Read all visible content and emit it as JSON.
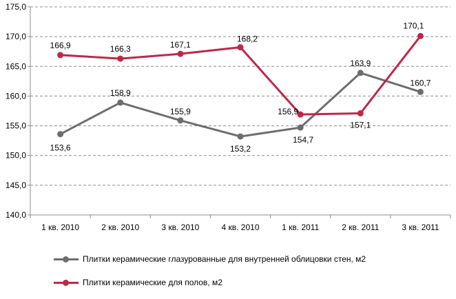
{
  "chart_data": {
    "type": "line",
    "categories": [
      "1 кв. 2010",
      "2 кв. 2010",
      "3 кв. 2010",
      "4 кв. 2010",
      "1 кв. 2011",
      "2 кв. 2011",
      "3 кв. 2011"
    ],
    "series": [
      {
        "name": "Плитки керамические глазурованные для внутренней облицовки стен, м2",
        "color": "#6d6d6d",
        "values": [
          153.6,
          158.9,
          155.9,
          153.2,
          154.7,
          163.9,
          160.7
        ],
        "labels": [
          "153,6",
          "158,9",
          "155,9",
          "153,2",
          "154,7",
          "163,9",
          "160,7"
        ]
      },
      {
        "name": "Плитки керамические для полов, м2",
        "color": "#be2847",
        "values": [
          166.9,
          166.3,
          167.1,
          168.2,
          156.9,
          157.1,
          170.1
        ],
        "labels": [
          "166,9",
          "166,3",
          "167,1",
          "168,2",
          "156,9",
          "157,1",
          "170,1"
        ]
      }
    ],
    "ylim": [
      140,
      175
    ],
    "yticks": [
      "140,0",
      "145,0",
      "150,0",
      "155,0",
      "160,0",
      "165,0",
      "170,0",
      "175,0"
    ],
    "grid": true,
    "legend": "bottom"
  }
}
